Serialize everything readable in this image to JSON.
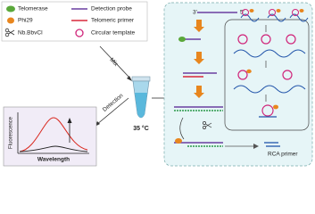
{
  "legend": {
    "items": [
      {
        "label": "Telomerase"
      },
      {
        "label": "Detection probe"
      },
      {
        "label": "Phi29"
      },
      {
        "label": "Telomeric primer"
      },
      {
        "label": "Nb.BbvCI"
      },
      {
        "label": "Circular template"
      }
    ]
  },
  "mix": "Mix",
  "detection": "Detection",
  "temperature": "35 °C",
  "plot": {
    "y_label": "Fluorescence",
    "x_label": "Wavelength"
  },
  "scheme": {
    "end_3": "3'",
    "end_5": "5'",
    "rca_primer": "RCA primer"
  }
}
